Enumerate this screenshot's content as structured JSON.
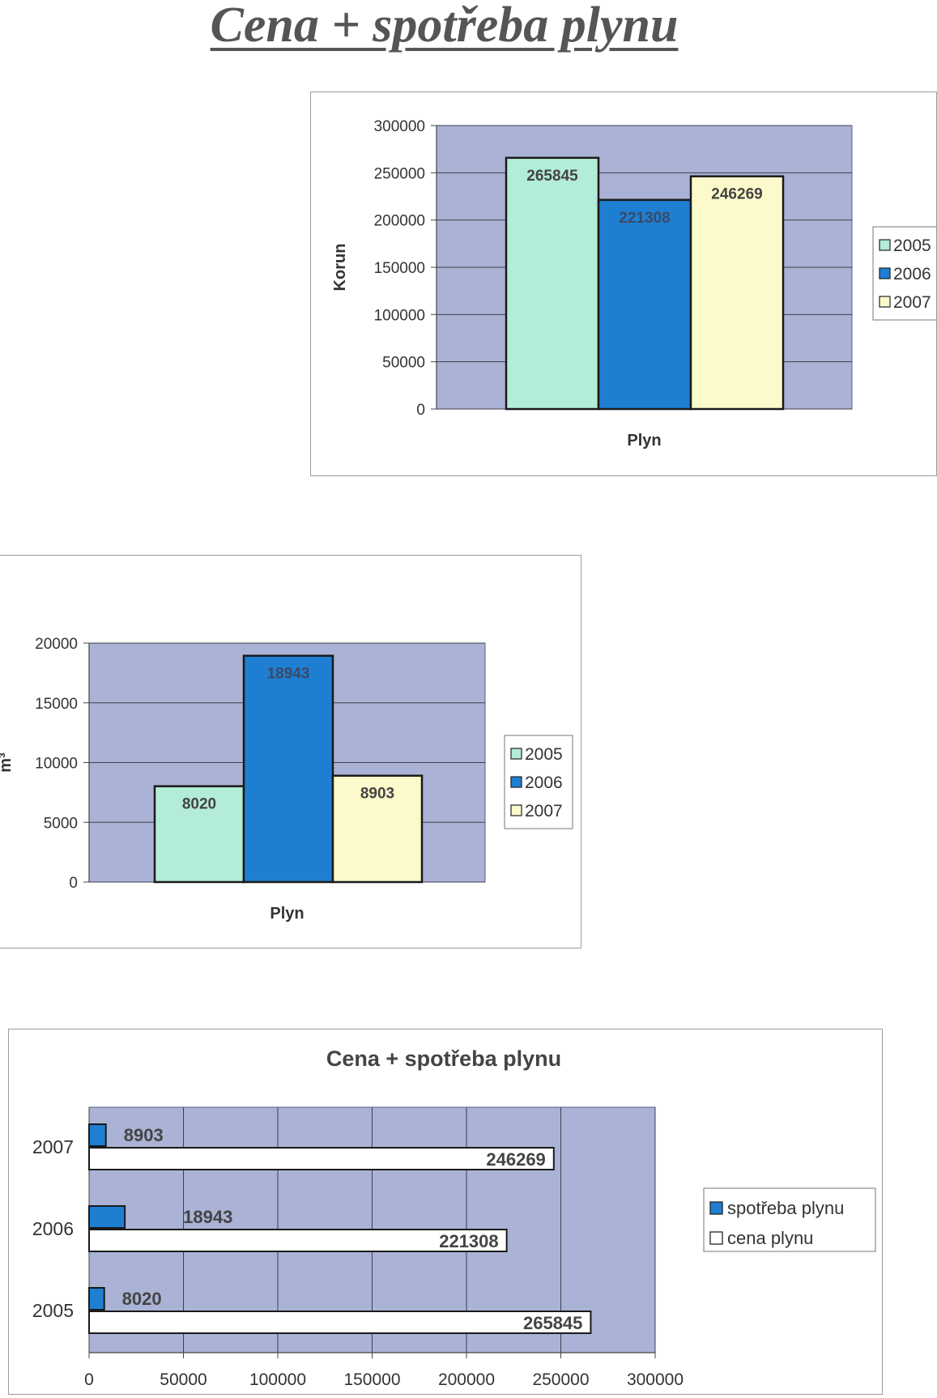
{
  "page_title": "Cena + spotřeba plynu",
  "colors": {
    "plot_bg": "#aab2d6",
    "grid": "#3f3f4a",
    "y2005": "#b3ecd9",
    "y2006": "#1e7fd2",
    "y2007": "#fcfacb",
    "white_bar": "#ffffff",
    "bar_outline": "#1a1a1a"
  },
  "chart_data": [
    {
      "type": "bar",
      "title": "",
      "xlabel": "Plyn",
      "ylabel": "Korun",
      "ylim": [
        0,
        300000
      ],
      "yticks": [
        "0",
        "50000",
        "100000",
        "150000",
        "200000",
        "250000",
        "300000"
      ],
      "grid": true,
      "legend_position": "right",
      "categories": [
        "Plyn"
      ],
      "series": [
        {
          "name": "2005",
          "values": [
            265845
          ],
          "label": "265845"
        },
        {
          "name": "2006",
          "values": [
            221308
          ],
          "label": "221308"
        },
        {
          "name": "2007",
          "values": [
            246269
          ],
          "label": "246269"
        }
      ]
    },
    {
      "type": "bar",
      "title": "",
      "xlabel": "Plyn",
      "ylabel": "m³",
      "ylim": [
        0,
        20000
      ],
      "yticks": [
        "0",
        "5000",
        "10000",
        "15000",
        "20000"
      ],
      "grid": true,
      "legend_position": "right",
      "categories": [
        "Plyn"
      ],
      "series": [
        {
          "name": "2005",
          "values": [
            8020
          ],
          "label": "8020"
        },
        {
          "name": "2006",
          "values": [
            18943
          ],
          "label": "18943"
        },
        {
          "name": "2007",
          "values": [
            8903
          ],
          "label": "8903"
        }
      ]
    },
    {
      "type": "bar",
      "orientation": "horizontal",
      "title": "Cena + spotřeba plynu",
      "xlabel": "",
      "ylabel": "",
      "xlim": [
        0,
        300000
      ],
      "xticks": [
        "0",
        "50000",
        "100000",
        "150000",
        "200000",
        "250000",
        "300000"
      ],
      "grid": true,
      "legend_position": "right",
      "categories": [
        "2005",
        "2006",
        "2007"
      ],
      "series": [
        {
          "name": "spotřeba plynu",
          "values": [
            8020,
            18943,
            8903
          ],
          "labels": [
            "8020",
            "18943",
            "8903"
          ]
        },
        {
          "name": "cena plynu",
          "values": [
            265845,
            221308,
            246269
          ],
          "labels": [
            "265845",
            "221308",
            "246269"
          ]
        }
      ]
    }
  ]
}
